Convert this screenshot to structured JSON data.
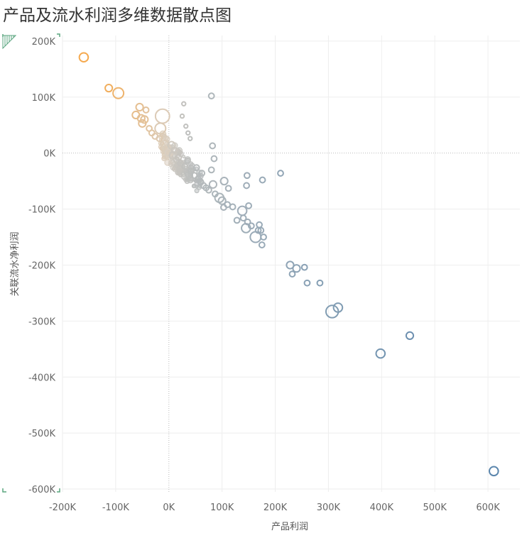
{
  "chart_data": {
    "type": "scatter",
    "title": "产品及流水利润多维数据散点图",
    "xlabel": "产品利润",
    "ylabel": "关联流水净利润",
    "xlim": [
      -200000,
      660000
    ],
    "ylim": [
      -605000,
      210000
    ],
    "xticks": [
      {
        "value": -200000,
        "label": "-200K"
      },
      {
        "value": -100000,
        "label": "-100K"
      },
      {
        "value": 0,
        "label": "0K"
      },
      {
        "value": 100000,
        "label": "100K"
      },
      {
        "value": 200000,
        "label": "200K"
      },
      {
        "value": 300000,
        "label": "300K"
      },
      {
        "value": 400000,
        "label": "400K"
      },
      {
        "value": 500000,
        "label": "500K"
      },
      {
        "value": 600000,
        "label": "600K"
      }
    ],
    "yticks": [
      {
        "value": 200000,
        "label": "200K"
      },
      {
        "value": 100000,
        "label": "100K"
      },
      {
        "value": 0,
        "label": "0K"
      },
      {
        "value": -100000,
        "label": "-100K"
      },
      {
        "value": -200000,
        "label": "-200K"
      },
      {
        "value": -300000,
        "label": "-300K"
      },
      {
        "value": -400000,
        "label": "-400K"
      },
      {
        "value": -500000,
        "label": "-500K"
      },
      {
        "value": -600000,
        "label": "-600K"
      }
    ],
    "grid": true,
    "color_scale": {
      "low": "#f5a94e",
      "mid": "#d9cfc2",
      "high": "#5b86ad"
    },
    "points": [
      {
        "x": -160000,
        "y": 171000,
        "s": 4
      },
      {
        "x": -113000,
        "y": 116000,
        "s": 3
      },
      {
        "x": -95000,
        "y": 107000,
        "s": 5
      },
      {
        "x": -55000,
        "y": 82000,
        "s": 3
      },
      {
        "x": -62000,
        "y": 68000,
        "s": 3
      },
      {
        "x": -52000,
        "y": 62000,
        "s": 3
      },
      {
        "x": -46000,
        "y": 60000,
        "s": 3
      },
      {
        "x": -50000,
        "y": 53000,
        "s": 3
      },
      {
        "x": -43000,
        "y": 77000,
        "s": 2
      },
      {
        "x": -37000,
        "y": 44000,
        "s": 2
      },
      {
        "x": -32000,
        "y": 36000,
        "s": 2
      },
      {
        "x": -26000,
        "y": 30000,
        "s": 2
      },
      {
        "x": -18000,
        "y": 26000,
        "s": 2
      },
      {
        "x": -12000,
        "y": 66000,
        "s": 7
      },
      {
        "x": -16000,
        "y": 44000,
        "s": 5
      },
      {
        "x": -8000,
        "y": 16000,
        "s": 3
      },
      {
        "x": -4000,
        "y": 8000,
        "s": 3
      },
      {
        "x": 0,
        "y": 0,
        "s": 3
      },
      {
        "x": 5000,
        "y": 14000,
        "s": 3
      },
      {
        "x": 8000,
        "y": -4000,
        "s": 3
      },
      {
        "x": 10000,
        "y": 5000,
        "s": 2
      },
      {
        "x": 14000,
        "y": -12000,
        "s": 2
      },
      {
        "x": 18000,
        "y": -8000,
        "s": 2
      },
      {
        "x": 22000,
        "y": -18000,
        "s": 2
      },
      {
        "x": 25000,
        "y": 66000,
        "s": 1
      },
      {
        "x": 28000,
        "y": 88000,
        "s": 1
      },
      {
        "x": 32000,
        "y": 48000,
        "s": 1
      },
      {
        "x": 36000,
        "y": 36000,
        "s": 1
      },
      {
        "x": 40000,
        "y": 26000,
        "s": 1
      },
      {
        "x": 30000,
        "y": -24000,
        "s": 2
      },
      {
        "x": 35000,
        "y": -14000,
        "s": 2
      },
      {
        "x": 42000,
        "y": -32000,
        "s": 2
      },
      {
        "x": 48000,
        "y": -40000,
        "s": 2
      },
      {
        "x": 55000,
        "y": -46000,
        "s": 2
      },
      {
        "x": 60000,
        "y": -52000,
        "s": 2
      },
      {
        "x": 65000,
        "y": -58000,
        "s": 2
      },
      {
        "x": 70000,
        "y": -62000,
        "s": 2
      },
      {
        "x": 75000,
        "y": -66000,
        "s": 2
      },
      {
        "x": 52000,
        "y": -26000,
        "s": 2
      },
      {
        "x": 62000,
        "y": -36000,
        "s": 2
      },
      {
        "x": 80000,
        "y": -30000,
        "s": 2
      },
      {
        "x": 85000,
        "y": -10000,
        "s": 2
      },
      {
        "x": 82000,
        "y": 13000,
        "s": 2
      },
      {
        "x": 80000,
        "y": 102000,
        "s": 2
      },
      {
        "x": 83000,
        "y": -56000,
        "s": 3
      },
      {
        "x": 87000,
        "y": -73000,
        "s": 2
      },
      {
        "x": 95000,
        "y": -80000,
        "s": 4
      },
      {
        "x": 100000,
        "y": -85000,
        "s": 3
      },
      {
        "x": 104000,
        "y": -50000,
        "s": 3
      },
      {
        "x": 103000,
        "y": -97000,
        "s": 2
      },
      {
        "x": 110000,
        "y": -92000,
        "s": 2
      },
      {
        "x": 112000,
        "y": -63000,
        "s": 2
      },
      {
        "x": 120000,
        "y": -96000,
        "s": 2
      },
      {
        "x": 128000,
        "y": -120000,
        "s": 2
      },
      {
        "x": 138000,
        "y": -103000,
        "s": 4
      },
      {
        "x": 140000,
        "y": -116000,
        "s": 2
      },
      {
        "x": 145000,
        "y": -134000,
        "s": 4
      },
      {
        "x": 148000,
        "y": -123000,
        "s": 2
      },
      {
        "x": 146000,
        "y": -58000,
        "s": 2
      },
      {
        "x": 147000,
        "y": -40000,
        "s": 2
      },
      {
        "x": 150000,
        "y": -94000,
        "s": 2
      },
      {
        "x": 155000,
        "y": -130000,
        "s": 2
      },
      {
        "x": 163000,
        "y": -150000,
        "s": 5
      },
      {
        "x": 168000,
        "y": -138000,
        "s": 2
      },
      {
        "x": 170000,
        "y": -128000,
        "s": 2
      },
      {
        "x": 173000,
        "y": -138000,
        "s": 2
      },
      {
        "x": 175000,
        "y": -164000,
        "s": 2
      },
      {
        "x": 178000,
        "y": -150000,
        "s": 2
      },
      {
        "x": 176000,
        "y": -48000,
        "s": 2
      },
      {
        "x": 210000,
        "y": -36000,
        "s": 2
      },
      {
        "x": 228000,
        "y": -200000,
        "s": 3
      },
      {
        "x": 232000,
        "y": -216000,
        "s": 2
      },
      {
        "x": 240000,
        "y": -206000,
        "s": 3
      },
      {
        "x": 255000,
        "y": -204000,
        "s": 2
      },
      {
        "x": 260000,
        "y": -232000,
        "s": 2
      },
      {
        "x": 284000,
        "y": -232000,
        "s": 2
      },
      {
        "x": 307000,
        "y": -283000,
        "s": 6
      },
      {
        "x": 318000,
        "y": -276000,
        "s": 4
      },
      {
        "x": 398000,
        "y": -358000,
        "s": 4
      },
      {
        "x": 453000,
        "y": -326000,
        "s": 3
      },
      {
        "x": 611000,
        "y": -568000,
        "s": 4
      }
    ]
  }
}
